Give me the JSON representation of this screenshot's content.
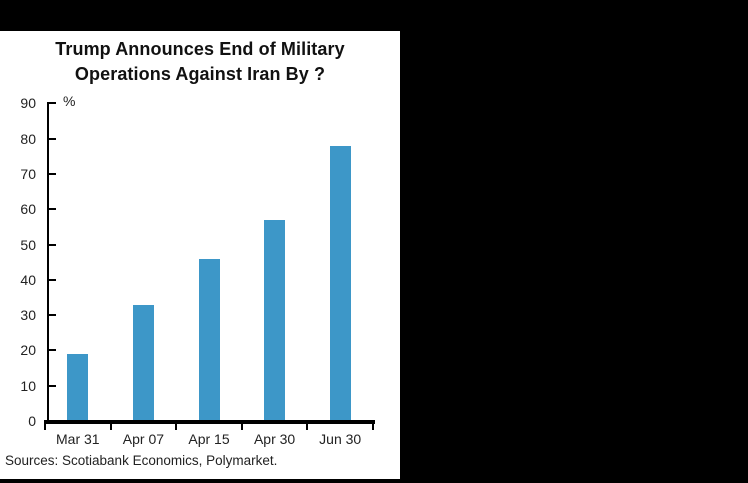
{
  "theme": {
    "background_color": "#000000",
    "panel_color": "#FFFFFF",
    "axis_color": "#000000",
    "text_color": "#222222"
  },
  "chart_data": {
    "type": "bar",
    "title": "Trump Announces End of Military Operations Against Iran By ?",
    "title_lines": [
      "Trump Announces End of Military",
      "Operations Against Iran By ?"
    ],
    "ylabel": "%",
    "categories": [
      "Mar 31",
      "Apr 07",
      "Apr 15",
      "Apr 30",
      "Jun 30"
    ],
    "values": [
      19,
      33,
      46,
      57,
      78
    ],
    "ylim": [
      0,
      90
    ],
    "ytick_interval": 10,
    "ytick_labels": [
      "0",
      "10",
      "20",
      "30",
      "40",
      "50",
      "60",
      "70",
      "80",
      "90"
    ],
    "bar_color": "#3D97C8",
    "grid": false,
    "legend": null,
    "source_note": "Sources: Scotiabank Economics, Polymarket."
  }
}
